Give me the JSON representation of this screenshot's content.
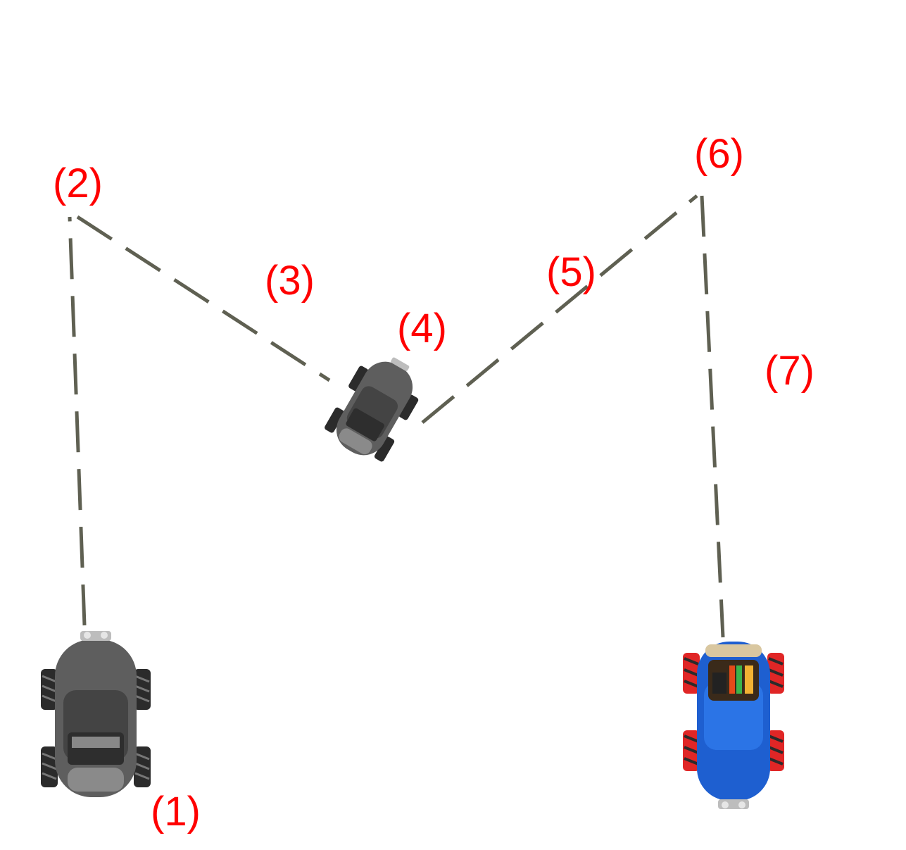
{
  "diagram": {
    "labels": [
      "(1)",
      "(2)",
      "(3)",
      "(4)",
      "(5)",
      "(6)",
      "(7)"
    ],
    "colors": {
      "label": "#ff0000",
      "path": "#5f6052",
      "robot_gray_body": "#5e5e5e",
      "robot_blue_body": "#1e5fd0",
      "wheel_dark": "#2b2b2b",
      "wheel_red": "#e02626"
    },
    "robots": [
      {
        "name": "start-robot",
        "style": "gray",
        "icon": "robot-car-icon"
      },
      {
        "name": "turning-robot",
        "style": "gray",
        "icon": "robot-car-icon"
      },
      {
        "name": "end-robot",
        "style": "blue",
        "icon": "robot-car-icon"
      }
    ]
  }
}
